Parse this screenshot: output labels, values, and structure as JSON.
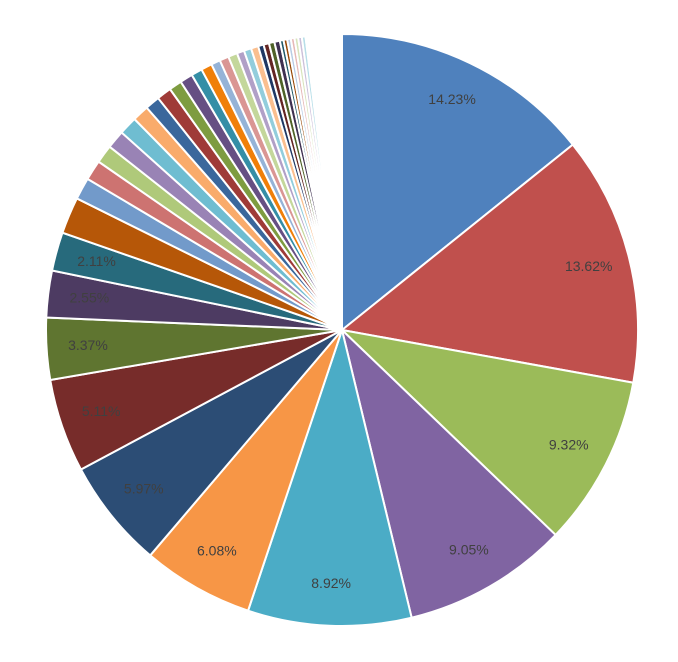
{
  "chart_data": {
    "type": "pie",
    "values": [
      14.23,
      13.62,
      9.32,
      9.05,
      8.92,
      6.08,
      5.97,
      5.11,
      3.37,
      2.55,
      2.11,
      2.0,
      1.2,
      1.1,
      1.0,
      1.0,
      1.0,
      0.9,
      0.8,
      0.8,
      0.7,
      0.7,
      0.6,
      0.6,
      0.5,
      0.5,
      0.5,
      0.4,
      0.4,
      0.4,
      0.3,
      0.3,
      0.3,
      0.3,
      0.2,
      0.2,
      0.2,
      0.2,
      0.2,
      0.2,
      0.2,
      0.1,
      0.1,
      0.1,
      0.1,
      0.1,
      0.1,
      0.1,
      0.1,
      0.1,
      0.1,
      0.97
    ],
    "value_labels": [
      "14.23%",
      "13.62%",
      "9.32%",
      "9.05%",
      "8.92%",
      "6.08%",
      "5.97%",
      "5.11%",
      "3.37%",
      "2.55%",
      "2.11%",
      null,
      null,
      null,
      null,
      null,
      null,
      null,
      null,
      null,
      null,
      null,
      null,
      null,
      null,
      null,
      null,
      null,
      null,
      null,
      null,
      null,
      null,
      null,
      null,
      null,
      null,
      null,
      null,
      null,
      null,
      null,
      null,
      null,
      null,
      null,
      null,
      null,
      null,
      null,
      null,
      null
    ],
    "colors": [
      "#4f81bd",
      "#c0504d",
      "#9bbb59",
      "#8064a2",
      "#4bacc6",
      "#f79646",
      "#2c4d75",
      "#772c2a",
      "#5f7530",
      "#4d3b62",
      "#276a7c",
      "#b65708",
      "#729aca",
      "#cd7371",
      "#afc97a",
      "#9983b5",
      "#6fbdd1",
      "#f9ab6b",
      "#3a679c",
      "#9f3b38",
      "#7e9c40",
      "#664f83",
      "#358ea6",
      "#f07f09",
      "#95b3d7",
      "#da9694",
      "#c4d79b",
      "#b1a0c7",
      "#92cddc",
      "#fabf8f",
      "#1f3864",
      "#632523",
      "#4f6228",
      "#3f3151",
      "#205867",
      "#974806",
      "#b8cce4",
      "#e6b8b7",
      "#d8e4bc",
      "#ccc0da",
      "#b7dee8",
      "#fcd5b4",
      "#dce6f1",
      "#f2dcdb",
      "#ebf1de",
      "#e4dfec",
      "#daeef3",
      "#fde9d9",
      "#eeeeee",
      "#f4f4f4",
      "#f8f8f8",
      "#ffffff"
    ]
  }
}
